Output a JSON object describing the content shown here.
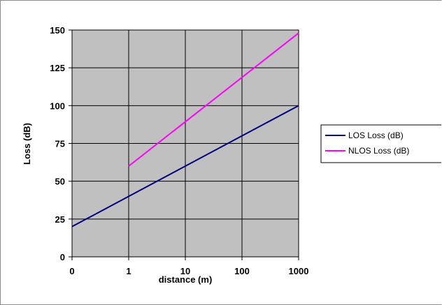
{
  "chart_data": {
    "type": "line",
    "xlabel": "distance (m)",
    "ylabel": "Loss (dB)",
    "x_tick_labels": [
      "0",
      "1",
      "10",
      "100",
      "1000"
    ],
    "y_ticks": [
      0,
      25,
      50,
      75,
      100,
      125,
      150
    ],
    "ylim": [
      0,
      150
    ],
    "grid": true,
    "plot_background": "#c0c0c0",
    "legend_position": "right",
    "series": [
      {
        "name": "LOS Loss (dB)",
        "color": "#000080",
        "x": [
          "0",
          "1000"
        ],
        "values": [
          20,
          100
        ]
      },
      {
        "name": "NLOS Loss (dB)",
        "color": "#ff00ff",
        "x": [
          "1",
          "1000"
        ],
        "values": [
          60,
          148
        ]
      }
    ]
  }
}
